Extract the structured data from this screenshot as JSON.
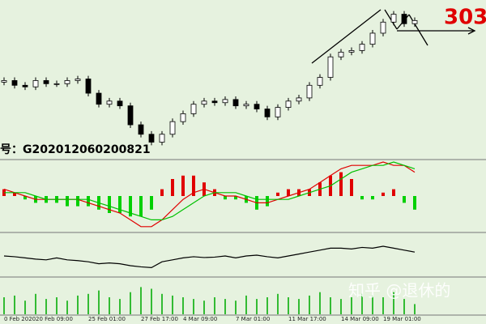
{
  "chart_data": [
    {
      "type": "candlestick",
      "open": [
        48,
        49,
        46,
        45,
        49,
        47,
        47,
        49,
        50,
        41,
        34,
        36,
        33,
        21,
        15,
        10,
        15,
        23,
        28,
        34,
        36,
        35,
        37,
        33,
        34,
        31,
        26,
        32,
        36,
        38,
        46,
        51,
        64,
        67,
        68,
        72,
        79,
        86,
        91,
        85
      ],
      "high": [
        51,
        51,
        48,
        51,
        51,
        49,
        51,
        52,
        52,
        43,
        38,
        38,
        35,
        23,
        17,
        17,
        25,
        30,
        36,
        38,
        38,
        39,
        39,
        36,
        36,
        33,
        34,
        38,
        40,
        48,
        53,
        66,
        69,
        70,
        74,
        81,
        88,
        93,
        93,
        89
      ],
      "low": [
        46,
        44,
        43,
        43,
        45,
        45,
        45,
        47,
        39,
        32,
        32,
        31,
        19,
        13,
        8,
        8,
        13,
        21,
        26,
        32,
        33,
        33,
        31,
        31,
        29,
        24,
        24,
        30,
        34,
        36,
        44,
        49,
        62,
        65,
        66,
        70,
        77,
        84,
        83,
        83
      ],
      "close": [
        49,
        46,
        45,
        49,
        47,
        47,
        49,
        50,
        41,
        34,
        36,
        33,
        21,
        15,
        10,
        15,
        23,
        28,
        34,
        36,
        35,
        37,
        33,
        34,
        31,
        26,
        32,
        36,
        38,
        46,
        51,
        64,
        67,
        68,
        72,
        79,
        86,
        91,
        85,
        87
      ],
      "up_color": "#ffffff",
      "down_color": "#000000",
      "ylim": [
        0,
        100
      ],
      "annotations": [
        {
          "text": "303",
          "color": "#e00000"
        },
        {
          "text": "号：G202012060200821",
          "color": "#000000"
        }
      ]
    },
    {
      "type": "macd",
      "series": [
        {
          "color": "#e00000",
          "values": [
            2,
            1,
            0,
            -1,
            -1,
            -1,
            -1,
            -1,
            -2,
            -3,
            -4,
            -5,
            -7,
            -9,
            -9,
            -7,
            -4,
            -1,
            1,
            2,
            1,
            0,
            0,
            -1,
            -2,
            -2,
            -1,
            0,
            1,
            2,
            4,
            6,
            8,
            9,
            9,
            9,
            10,
            9,
            9,
            7
          ]
        },
        {
          "color": "#00c000",
          "values": [
            1,
            1,
            1,
            0,
            -1,
            -1,
            -1,
            -1,
            -1,
            -2,
            -3,
            -4,
            -5,
            -6,
            -7,
            -7,
            -6,
            -4,
            -2,
            0,
            1,
            1,
            1,
            0,
            -1,
            -1,
            -1,
            -1,
            0,
            1,
            2,
            3,
            5,
            7,
            8,
            9,
            9,
            10,
            9,
            8
          ]
        }
      ],
      "histogram": {
        "up_color": "#e00000",
        "down_color": "#00d000",
        "values": [
          2,
          1,
          -1,
          -2,
          -2,
          -2,
          -3,
          -3,
          -3,
          -4,
          -5,
          -5,
          -6,
          -6,
          -4,
          2,
          5,
          6,
          6,
          4,
          2,
          -1,
          -1,
          -2,
          -4,
          -3,
          1,
          2,
          2,
          2,
          4,
          6,
          7,
          5,
          -1,
          -1,
          1,
          2,
          -2,
          -4
        ]
      },
      "ylim": [
        -10,
        10
      ]
    },
    {
      "type": "line",
      "color": "#000000",
      "values": [
        50,
        48,
        45,
        42,
        40,
        45,
        40,
        38,
        35,
        30,
        32,
        30,
        25,
        22,
        20,
        35,
        40,
        45,
        48,
        46,
        47,
        50,
        45,
        50,
        52,
        48,
        45,
        50,
        55,
        60,
        65,
        70,
        70,
        68,
        72,
        70,
        75,
        70,
        65,
        60
      ],
      "ylim": [
        0,
        100
      ]
    },
    {
      "type": "bar",
      "color": "#33bb33",
      "categories": [
        "0 Feb 2020",
        null,
        null,
        "20 Feb 09:00",
        null,
        null,
        null,
        null,
        "25 Feb 01:00",
        null,
        null,
        null,
        null,
        "27 Feb 17:00",
        null,
        null,
        null,
        "4 Mar 09:00",
        null,
        null,
        null,
        null,
        "7 Mar 01:00",
        null,
        null,
        null,
        null,
        "11 Mar 17:00",
        null,
        null,
        null,
        null,
        "14 Mar 09:00",
        null,
        null,
        null,
        "19 Mar 01:00",
        null,
        null,
        null
      ],
      "values": [
        50,
        55,
        40,
        60,
        45,
        50,
        40,
        55,
        60,
        70,
        50,
        45,
        65,
        80,
        75,
        60,
        55,
        50,
        45,
        40,
        50,
        45,
        40,
        55,
        45,
        50,
        60,
        50,
        45,
        55,
        65,
        50,
        45,
        50,
        60,
        55,
        50,
        65,
        45,
        30
      ],
      "ylim": [
        0,
        100
      ],
      "watermark": "知乎 @退休的"
    }
  ]
}
